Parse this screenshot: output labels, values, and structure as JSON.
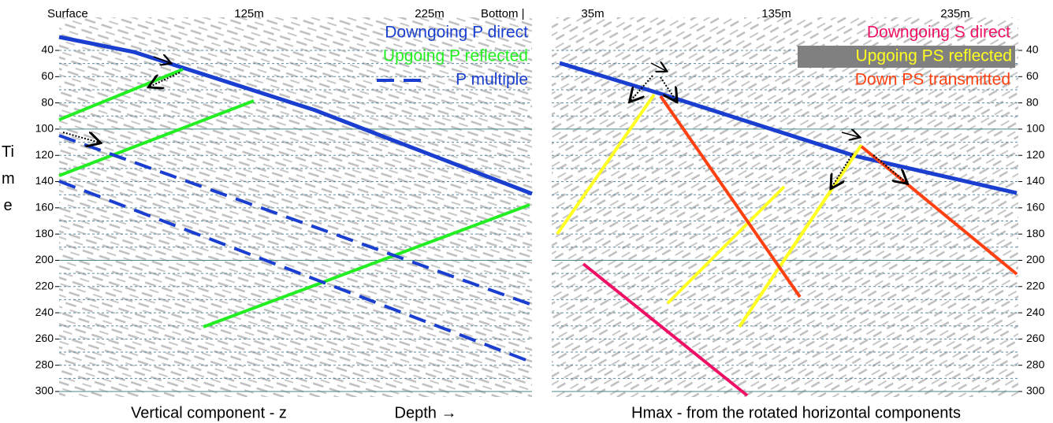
{
  "left_panel": {
    "top_labels": [
      "Surface",
      "125m",
      "225m",
      "Bottom |"
    ],
    "legend": [
      "Downgoing P direct",
      "Upgoing P reflected",
      "P multiple"
    ],
    "bottom_labels": [
      "Vertical component - z",
      "Depth →"
    ]
  },
  "right_panel": {
    "top_labels": [
      "35m",
      "135m",
      "235m"
    ],
    "legend": [
      "Downgoing S direct",
      "Upgoing PS reflected",
      "Down PS transmitted"
    ],
    "bottom_label": "Hmax - from the rotated horizontal components"
  },
  "time_axis": {
    "label": "Time",
    "ticks": [
      40,
      60,
      80,
      100,
      120,
      140,
      160,
      180,
      200,
      220,
      240,
      260,
      280,
      300
    ]
  }
}
